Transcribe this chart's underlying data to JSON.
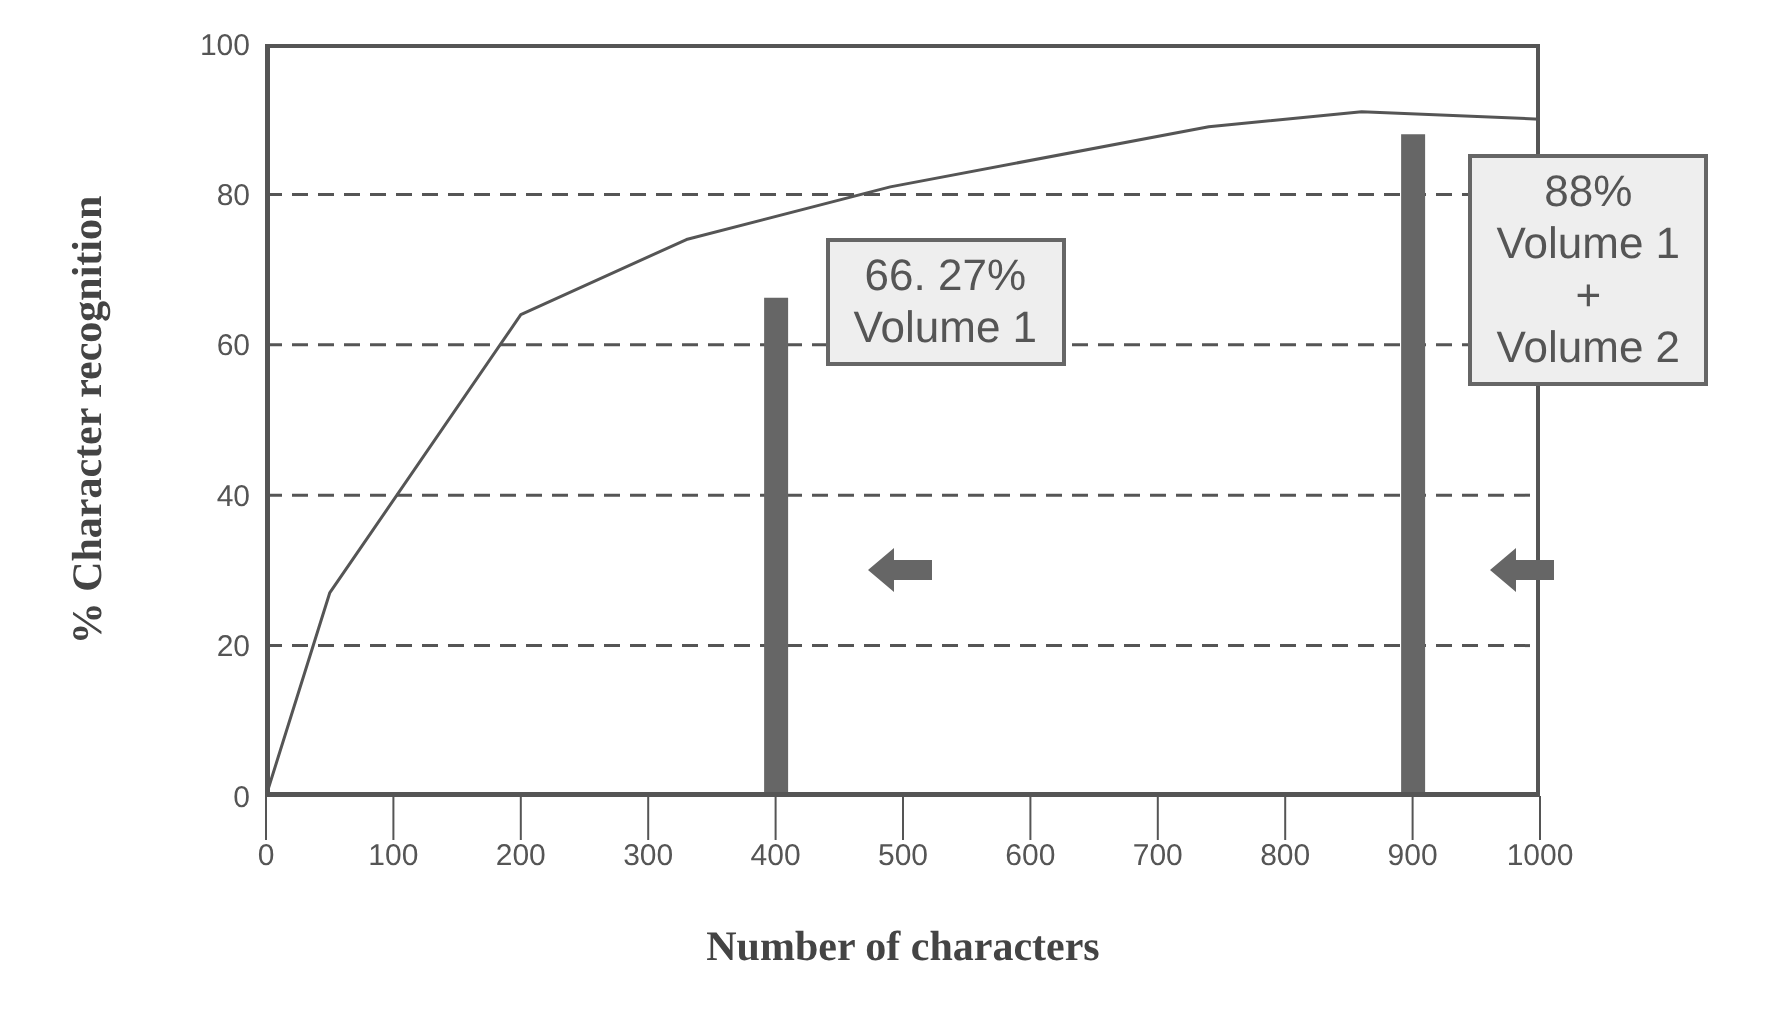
{
  "chart_data": {
    "type": "line",
    "xlabel": "Number of characters",
    "ylabel": "% Character recognition",
    "xlim": [
      0,
      1000
    ],
    "xticks": [
      0,
      100,
      200,
      300,
      400,
      500,
      600,
      700,
      800,
      900,
      1000
    ],
    "ylim": [
      0,
      100
    ],
    "yticks": [
      0,
      20,
      40,
      60,
      80,
      100
    ],
    "grid": "y",
    "series": [
      {
        "color": "#555555",
        "x": [
          0,
          50,
          200,
          330,
          490,
          740,
          860,
          1000
        ],
        "values": [
          0,
          27,
          64,
          74,
          81,
          89,
          91,
          90
        ]
      },
      {
        "type": "bar",
        "color": "#666666",
        "x": [
          400,
          900
        ],
        "values": [
          66.27,
          88
        ]
      }
    ],
    "annotations": [
      {
        "text": "66. 27%\nVolume 1",
        "x": 400,
        "y": 66.27
      },
      {
        "text": "88%\nVolume 1\n+\nVolume 2",
        "x": 900,
        "y": 88
      }
    ]
  }
}
